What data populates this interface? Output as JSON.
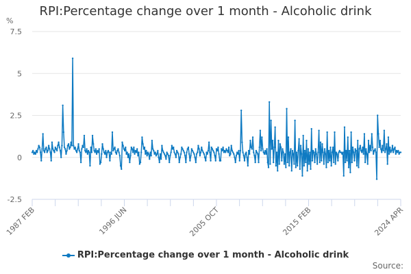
{
  "chart_data": {
    "type": "line",
    "title": "RPI:Percentage change over 1 month - Alcoholic drink",
    "ylabel": "%",
    "xlabel": "",
    "frequency": "monthly",
    "x_start": "1987 FEB",
    "x_end": "2024 APR",
    "x_tick_labels": [
      "1987 FEB",
      "1996 JUN",
      "2005 OCT",
      "2015 FEB",
      "2024 APR"
    ],
    "y_tick_labels": [
      "7.5",
      "5",
      "2.5",
      "0",
      "-2.5"
    ],
    "ylim": [
      -2.5,
      7.5
    ],
    "grid": true,
    "legend_position": "bottom",
    "color": "#0e7ac2",
    "series": [
      {
        "name": "RPI:Percentage change over 1 month - Alcoholic drink",
        "values": [
          0.3,
          0.4,
          0.2,
          0.3,
          0.2,
          0.4,
          0.3,
          0.5,
          0.7,
          0.6,
          0.3,
          -0.2,
          0.5,
          1.4,
          0.4,
          0.3,
          0.5,
          0.6,
          0.3,
          0.4,
          0.7,
          0.5,
          0.3,
          -0.2,
          0.9,
          0.5,
          0.4,
          0.3,
          0.6,
          0.5,
          0.4,
          0.7,
          0.9,
          0.6,
          0.4,
          0.0,
          0.7,
          3.1,
          1.5,
          0.6,
          0.5,
          0.2,
          0.4,
          0.7,
          0.8,
          0.5,
          0.6,
          0.9,
          0.7,
          5.9,
          0.7,
          0.5,
          0.6,
          0.4,
          0.3,
          0.5,
          0.8,
          0.4,
          0.3,
          -0.3,
          0.5,
          0.7,
          0.6,
          1.3,
          0.4,
          0.3,
          0.5,
          0.2,
          0.4,
          0.3,
          -0.5,
          0.6,
          0.3,
          1.3,
          0.8,
          0.4,
          0.3,
          0.5,
          0.2,
          0.4,
          0.3,
          0.5,
          -0.4,
          -0.3,
          0.2,
          0.8,
          0.5,
          0.3,
          0.2,
          0.4,
          0.0,
          0.3,
          0.4,
          0.3,
          -0.2,
          0.3,
          0.2,
          1.5,
          0.4,
          0.5,
          0.6,
          0.3,
          0.2,
          0.4,
          0.5,
          0.3,
          0.1,
          -0.5,
          -0.7,
          0.9,
          0.7,
          0.5,
          0.4,
          0.6,
          0.2,
          0.3,
          0.0,
          0.2,
          -0.3,
          0.1,
          0.6,
          0.5,
          0.3,
          0.6,
          0.2,
          0.4,
          0.3,
          0.5,
          0.1,
          0.3,
          -0.4,
          -0.3,
          0.3,
          1.2,
          0.8,
          0.5,
          0.6,
          0.2,
          0.4,
          0.1,
          0.3,
          0.2,
          -0.1,
          0.3,
          0.1,
          1.0,
          0.5,
          0.4,
          0.2,
          0.3,
          0.1,
          0.2,
          0.4,
          0.0,
          -0.3,
          0.2,
          -0.1,
          0.7,
          0.4,
          0.3,
          0.2,
          0.1,
          -0.1,
          0.3,
          0.2,
          0.1,
          -0.3,
          0.1,
          0.3,
          0.7,
          0.5,
          0.6,
          0.3,
          0.2,
          0.0,
          0.4,
          0.3,
          0.2,
          -0.3,
          0.0,
          0.2,
          0.6,
          0.5,
          0.4,
          0.3,
          0.1,
          -0.3,
          0.3,
          0.5,
          0.6,
          0.2,
          -0.2,
          0.1,
          0.5,
          0.4,
          0.3,
          0.2,
          0.0,
          -0.3,
          0.2,
          0.3,
          0.7,
          0.5,
          0.1,
          0.3,
          0.6,
          0.4,
          0.3,
          0.2,
          0.0,
          -0.2,
          0.3,
          0.2,
          0.4,
          0.9,
          0.3,
          -0.2,
          0.6,
          0.5,
          0.4,
          0.3,
          0.1,
          -0.2,
          0.5,
          0.4,
          0.6,
          0.2,
          -0.2,
          -0.2,
          0.5,
          0.4,
          0.6,
          0.3,
          0.4,
          0.3,
          0.5,
          0.4,
          0.3,
          0.6,
          0.1,
          0.2,
          0.7,
          0.4,
          0.3,
          0.2,
          0.0,
          -0.3,
          0.1,
          0.3,
          0.2,
          0.4,
          -0.2,
          0.4,
          2.8,
          0.9,
          0.3,
          0.1,
          -0.2,
          0.2,
          0.3,
          0.0,
          -0.5,
          0.4,
          0.2,
          1.0,
          0.6,
          0.5,
          1.2,
          0.3,
          0.1,
          -0.3,
          0.4,
          0.3,
          0.2,
          -0.3,
          0.6,
          1.6,
          0.4,
          1.2,
          0.5,
          0.3,
          0.2,
          0.4,
          0.2,
          0.5,
          -0.3,
          -0.6,
          3.3,
          -0.4,
          2.2,
          0.5,
          1.0,
          -0.3,
          0.6,
          1.8,
          -0.5,
          0.3,
          -0.8,
          1.0,
          -0.4,
          0.8,
          0.6,
          -0.2,
          0.5,
          0.3,
          -0.4,
          0.2,
          -0.6,
          2.9,
          -0.3,
          1.2,
          -0.5,
          0.3,
          0.5,
          -0.8,
          0.4,
          0.2,
          -0.4,
          2.2,
          -0.6,
          0.3,
          -0.5,
          0.4,
          1.1,
          -0.7,
          0.7,
          0.2,
          -1.1,
          1.3,
          -0.5,
          0.4,
          -0.3,
          1.0,
          -0.8,
          0.5,
          -0.4,
          0.3,
          -0.7,
          1.7,
          -0.2,
          0.4,
          0.3,
          -0.3,
          0.5,
          0.2,
          -0.4,
          0.3,
          1.6,
          -0.3,
          0.9,
          -0.2,
          0.8,
          0.3,
          -0.4,
          0.5,
          0.2,
          -0.6,
          1.5,
          -0.3,
          0.4,
          -0.2,
          0.6,
          -0.5,
          0.3,
          0.6,
          -0.3,
          1.5,
          -0.4,
          0.3,
          0.2,
          -0.2,
          0.3,
          0.4,
          0.3,
          0.3,
          0.2,
          0.3,
          -1.1,
          1.8,
          -0.3,
          0.4,
          -0.2,
          1.2,
          -0.6,
          0.4,
          -0.9,
          1.5,
          -0.3,
          0.6,
          0.3,
          -0.2,
          0.5,
          0.4,
          -0.5,
          1.0,
          -0.6,
          0.5,
          0.7,
          0.4,
          0.3,
          0.6,
          0.2,
          1.4,
          -0.3,
          0.5,
          0.2,
          -0.4,
          1.0,
          0.3,
          0.7,
          0.4,
          1.4,
          0.6,
          0.2,
          0.4,
          0.5,
          0.3,
          -1.3,
          2.5,
          1.4,
          0.6,
          1.0,
          0.5,
          0.3,
          0.7,
          0.4,
          1.6,
          0.3,
          0.5,
          0.8,
          -0.4,
          1.2,
          0.2,
          0.6,
          0.3,
          0.4,
          0.7,
          0.3,
          0.5,
          0.6,
          0.2,
          0.4,
          0.3,
          0.4,
          0.2,
          0.3,
          0.3
        ]
      }
    ]
  },
  "legend": {
    "label": "RPI:Percentage change over 1 month - Alcoholic drink"
  },
  "source_label": "Source:"
}
